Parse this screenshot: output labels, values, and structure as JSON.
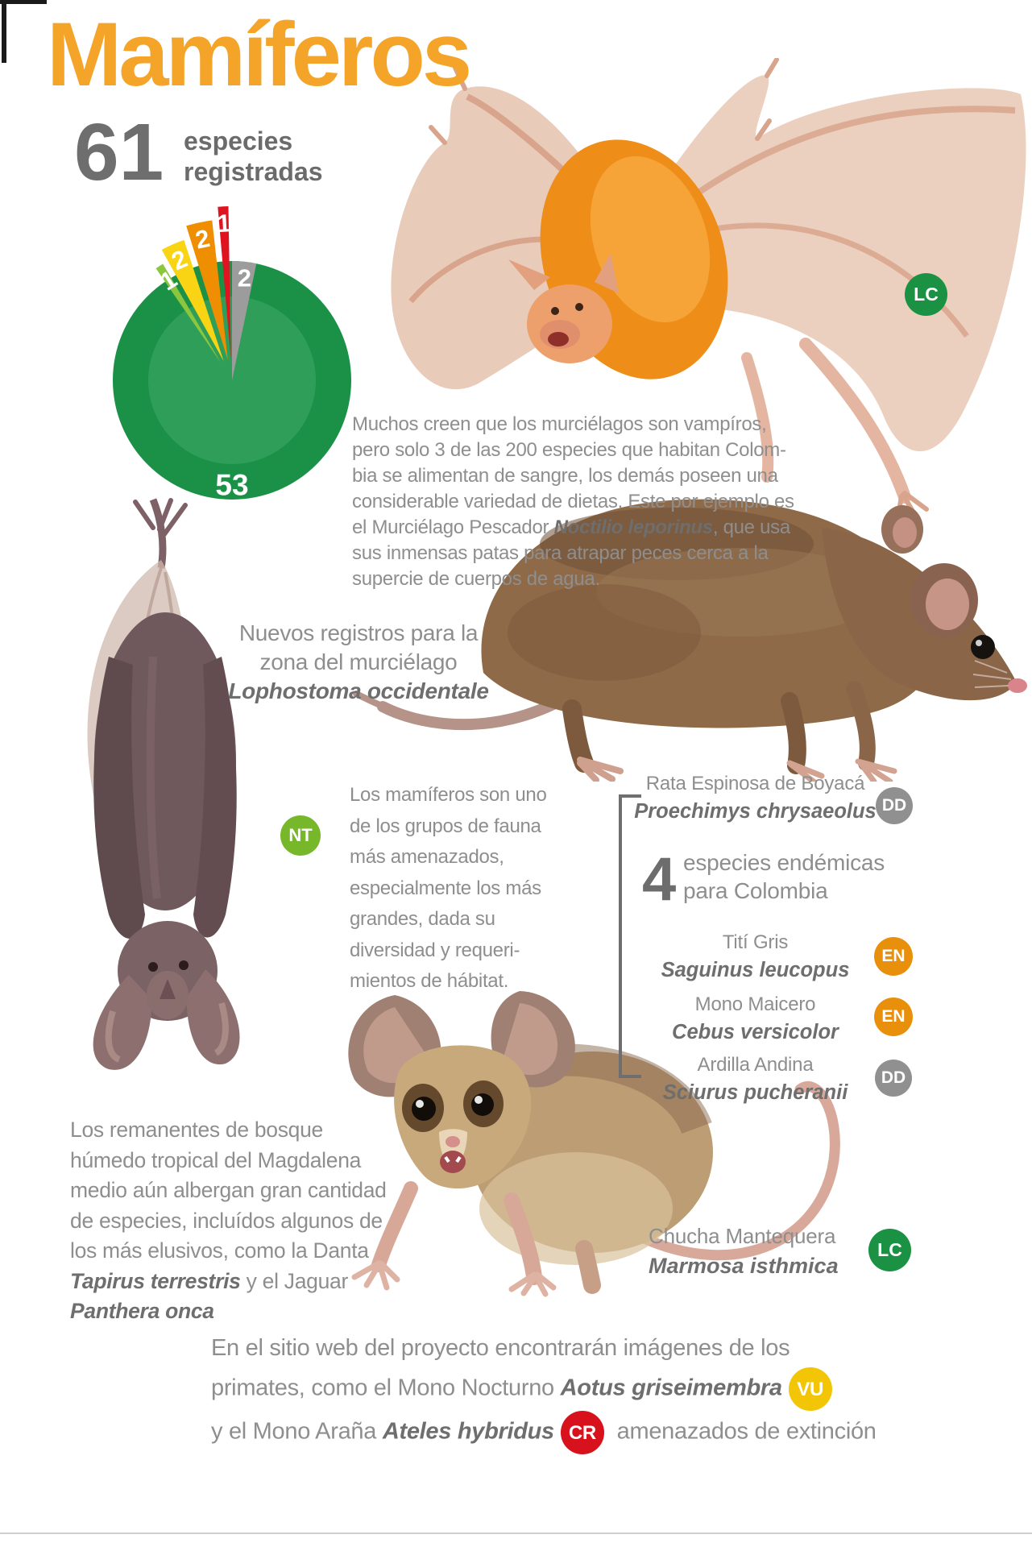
{
  "header": {
    "title": "Mamíferos",
    "count": "61",
    "count_label_lines": [
      [
        {
          "t": "especies"
        }
      ],
      [
        {
          "t": "registradas"
        }
      ]
    ]
  },
  "chart_data": {
    "type": "pie",
    "title": "61 especies registradas",
    "total": 61,
    "inner_color": "#2F9E58",
    "legend_position": "none",
    "slices": [
      {
        "label": "53",
        "value": 53,
        "color": "#1B9148",
        "role": "main"
      },
      {
        "label": "1",
        "value": 1,
        "color": "#8CC63F",
        "exploded": true
      },
      {
        "label": "2",
        "value": 2,
        "color": "#F8D414",
        "exploded": true
      },
      {
        "label": "2",
        "value": 2,
        "color": "#EF8E00",
        "exploded": true
      },
      {
        "label": "1",
        "value": 1,
        "color": "#E01421",
        "exploded": true
      },
      {
        "label": "2",
        "value": 2,
        "color": "#9C9C9C",
        "exploded": false
      }
    ]
  },
  "badge_colors": {
    "LC": "#1B9144",
    "NT": "#77B82B",
    "EN": "#E8900C",
    "DD": "#909090",
    "VU": "#F2C507",
    "CR": "#D7121C"
  },
  "sections": {
    "bat_intro": {
      "badge": "LC",
      "lines": [
        [
          {
            "t": "Muchos creen que los murciélagos son vampíros,"
          }
        ],
        [
          {
            "t": "pero solo 3 de las 200 especies que habitan Colom-"
          }
        ],
        [
          {
            "t": "bia se alimentan de sangre, los demás poseen una"
          }
        ],
        [
          {
            "t": "considerable variedad de dietas. Este por ejemplo es"
          }
        ],
        [
          {
            "t": "el Murciélago Pescador "
          },
          {
            "t": "Noctilio leporinus",
            "em": true
          },
          {
            "t": ", que usa"
          }
        ],
        [
          {
            "t": "sus inmensas patas para atrapar peces cerca a la"
          }
        ],
        [
          {
            "t": "supercie de cuerpos de agua."
          }
        ]
      ]
    },
    "new_records": {
      "lines": [
        [
          {
            "t": "Nuevos registros para la"
          }
        ],
        [
          {
            "t": "zona del murciélago"
          }
        ],
        [
          {
            "t": "Lophostoma occidentale",
            "em": true
          }
        ]
      ]
    },
    "threats": {
      "badge": "NT",
      "lines": [
        [
          {
            "t": "Los mamíferos son uno"
          }
        ],
        [
          {
            "t": "de los grupos de fauna"
          }
        ],
        [
          {
            "t": "más amenazados,"
          }
        ],
        [
          {
            "t": "especialmente los más"
          }
        ],
        [
          {
            "t": "grandes, dada su"
          }
        ],
        [
          {
            "t": "diversidad y requeri-"
          }
        ],
        [
          {
            "t": "mientos de hábitat."
          }
        ]
      ]
    },
    "rata": {
      "name": "Rata Espinosa de Boyacá",
      "sci": "Proechimys chrysaeolus",
      "badge": "DD"
    },
    "endemic": {
      "number": "4",
      "lines": [
        [
          {
            "t": "especies endémicas"
          }
        ],
        [
          {
            "t": "para Colombia"
          }
        ]
      ]
    },
    "species": [
      {
        "name": "Tití Gris",
        "sci": "Saguinus leucopus",
        "badge": "EN"
      },
      {
        "name": "Mono Maicero",
        "sci": "Cebus versicolor",
        "badge": "EN"
      },
      {
        "name": "Ardilla Andina",
        "sci": "Sciurus pucheranii",
        "badge": "DD"
      }
    ],
    "remnants": {
      "lines": [
        [
          {
            "t": "Los remanentes de bosque"
          }
        ],
        [
          {
            "t": "húmedo tropical del Magdalena"
          }
        ],
        [
          {
            "t": "medio aún albergan gran cantidad"
          }
        ],
        [
          {
            "t": "de especies, incluídos algunos de"
          }
        ],
        [
          {
            "t": "los más elusivos, como la Danta"
          }
        ],
        [
          {
            "t": "Tapirus terrestris",
            "em": true
          },
          {
            "t": " y el Jaguar"
          }
        ],
        [
          {
            "t": "Panthera onca",
            "em": true
          }
        ]
      ]
    },
    "chucha": {
      "name": "Chucha Mantequera",
      "sci": "Marmosa isthmica",
      "badge": "LC"
    },
    "website": {
      "lines": [
        [
          {
            "t": "En el sitio web del proyecto encontrarán imágenes de los"
          }
        ],
        [
          {
            "t": "primates, como el Mono Nocturno "
          },
          {
            "t": "Aotus griseimembra",
            "em": true
          },
          {
            "b": "VU"
          }
        ],
        [
          {
            "t": "y el Mono Araña "
          },
          {
            "t": "Ateles hybridus",
            "em": true
          },
          {
            "b": "CR"
          },
          {
            "t": " amenazados de extinción"
          }
        ]
      ]
    }
  },
  "colors": {
    "title_orange": "#F4A428",
    "body_gray": "#8E8E8E",
    "dark_gray": "#6B6B6B"
  }
}
